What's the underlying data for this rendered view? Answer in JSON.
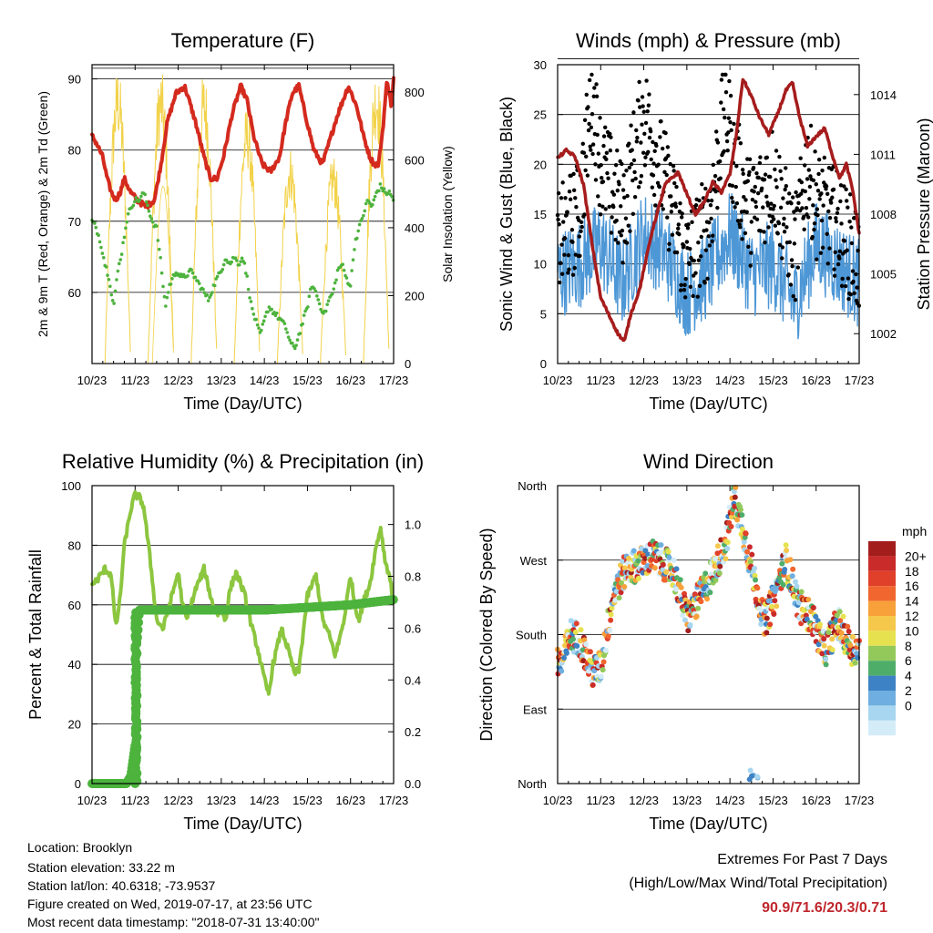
{
  "days": [
    "10/23",
    "11/23",
    "12/23",
    "13/23",
    "14/23",
    "15/23",
    "16/23",
    "17/23"
  ],
  "time_label": "Time (Day/UTC)",
  "chart_data": [
    {
      "type": "line",
      "title": "Temperature (F)",
      "ylabel": "2m & 9m T (Red, Orange) & 2m Td (Green)",
      "ylabel_right": "Solar Insolation (Yellow)",
      "xlabel": "Time (Day/UTC)",
      "xlim": [
        0,
        7
      ],
      "ylim": [
        50,
        92
      ],
      "ylim_right": [
        0,
        880
      ],
      "yticks": [
        60,
        70,
        80,
        90
      ],
      "yticks_right": [
        0,
        200,
        400,
        600,
        800
      ],
      "gridlines": [
        60,
        70,
        80,
        90
      ],
      "series": [
        {
          "color": "#d42a1e",
          "x": [
            0,
            0.1,
            0.25,
            0.35,
            0.45,
            0.55,
            0.65,
            0.75,
            0.9,
            1.05,
            1.25,
            1.45,
            1.6,
            1.75,
            1.95,
            2.15,
            2.4,
            2.6,
            2.75,
            2.9,
            3.05,
            3.25,
            3.45,
            3.6,
            3.75,
            3.95,
            4.15,
            4.35,
            4.5,
            4.65,
            4.8,
            4.95,
            5.15,
            5.35,
            5.5,
            5.7,
            5.95,
            6.15,
            6.3,
            6.45,
            6.55,
            6.65,
            6.75,
            6.85,
            6.95,
            7
          ],
          "values": [
            82,
            81,
            79,
            76,
            74,
            73,
            74,
            76,
            74,
            73,
            72,
            73,
            78,
            84,
            88,
            89,
            84,
            79,
            76,
            76,
            79,
            85,
            89,
            87,
            82,
            78,
            77,
            79,
            84,
            88,
            89,
            85,
            80,
            78,
            81,
            85,
            89,
            86,
            82,
            79,
            78,
            78,
            83,
            90,
            86,
            90
          ]
        },
        {
          "color": "#4db33d",
          "x": [
            0,
            0.1,
            0.2,
            0.3,
            0.4,
            0.5,
            0.6,
            0.7,
            0.8,
            0.9,
            1.0,
            1.1,
            1.2,
            1.3,
            1.4,
            1.5,
            1.6,
            1.7,
            1.8,
            1.95,
            2.1,
            2.3,
            2.5,
            2.7,
            2.9,
            3.0,
            3.1,
            3.2,
            3.3,
            3.4,
            3.5,
            3.6,
            3.7,
            3.8,
            3.9,
            4.0,
            4.1,
            4.25,
            4.4,
            4.5,
            4.6,
            4.7,
            4.8,
            4.9,
            5.0,
            5.1,
            5.2,
            5.3,
            5.4,
            5.5,
            5.6,
            5.7,
            5.8,
            5.9,
            6.0,
            6.1,
            6.2,
            6.3,
            6.4,
            6.5,
            6.6,
            6.7,
            6.8,
            6.9,
            7.0
          ],
          "values": [
            70,
            69,
            67,
            64,
            62,
            58,
            63,
            66,
            70,
            72,
            73,
            73,
            74,
            72,
            70,
            69,
            64,
            58,
            61,
            63,
            62,
            63,
            61,
            59,
            62,
            63,
            65,
            64,
            65,
            64,
            65,
            62,
            58,
            56,
            54,
            56,
            58,
            57,
            56,
            55,
            53,
            52,
            54,
            56,
            58,
            61,
            60,
            58,
            57,
            59,
            60,
            63,
            64,
            62,
            61,
            67,
            69,
            71,
            73,
            72,
            74,
            75,
            74,
            74,
            73
          ]
        },
        {
          "color": "#f2d24a",
          "x": [
            0.6,
            1.6,
            2.6,
            3.6,
            4.6,
            5.6,
            6.6
          ],
          "values": [
            875,
            870,
            860,
            760,
            640,
            620,
            880
          ],
          "note": "daily insolation peaks"
        }
      ]
    },
    {
      "type": "scatter",
      "title": "Winds (mph) & Pressure (mb)",
      "ylabel": "Sonic Wind & Gust (Blue, Black)",
      "ylabel_right": "Station Pressure (Maroon)",
      "xlabel": "Time (Day/UTC)",
      "xlim": [
        0,
        7
      ],
      "ylim": [
        0,
        30
      ],
      "ylim_right": [
        1000.5,
        1015.5
      ],
      "yticks": [
        0,
        5,
        10,
        15,
        20,
        25,
        30
      ],
      "yticks_right": [
        1002,
        1005,
        1008,
        1011,
        1014
      ],
      "gridlines": [
        5,
        10,
        15,
        20,
        25,
        30
      ],
      "series": [
        {
          "color": "#4d97d6",
          "x": [
            0,
            0.5,
            1.0,
            1.5,
            2.0,
            2.5,
            3.0,
            3.5,
            4.0,
            4.5,
            5.0,
            5.5,
            6.0,
            6.5,
            7.0
          ],
          "values": [
            9,
            10,
            12,
            8,
            13,
            11,
            7,
            9,
            13,
            9,
            10,
            6,
            12,
            10,
            8
          ]
        },
        {
          "color": "#000000",
          "x": [
            0,
            0.5,
            0.8,
            1.0,
            1.5,
            2.0,
            2.5,
            3.0,
            3.5,
            3.9,
            4.1,
            4.5,
            5.0,
            5.5,
            5.8,
            6.0,
            6.5,
            7.0
          ],
          "values": [
            12,
            15,
            27,
            20,
            15,
            25,
            18,
            10,
            14,
            26,
            20,
            15,
            19,
            11,
            20,
            16,
            14,
            10
          ]
        },
        {
          "color": "#a61c1c",
          "x": [
            0,
            0.2,
            0.4,
            0.6,
            0.8,
            1.0,
            1.2,
            1.4,
            1.55,
            1.7,
            1.9,
            2.2,
            2.5,
            2.8,
            3.0,
            3.2,
            3.4,
            3.6,
            3.8,
            4.0,
            4.15,
            4.3,
            4.5,
            4.7,
            4.9,
            5.1,
            5.3,
            5.45,
            5.6,
            5.8,
            6.0,
            6.2,
            6.4,
            6.55,
            6.7,
            6.85,
            7.0
          ],
          "values": [
            1010.8,
            1011.2,
            1010.9,
            1009.5,
            1006.5,
            1003.8,
            1002.9,
            1002.0,
            1001.6,
            1003.0,
            1004.2,
            1007.2,
            1009.5,
            1010.1,
            1009.0,
            1008.0,
            1008.6,
            1009.6,
            1009.1,
            1010.0,
            1012.0,
            1014.8,
            1013.9,
            1012.8,
            1012.0,
            1013.0,
            1014.2,
            1014.6,
            1013.0,
            1011.4,
            1011.9,
            1012.3,
            1010.8,
            1009.8,
            1010.5,
            1009.2,
            1007.0
          ]
        }
      ]
    },
    {
      "type": "line",
      "title": "Relative Humidity (%) & Precipitation (in)",
      "ylabel": "Percent & Total Rainfall",
      "xlabel": "Time (Day/UTC)",
      "xlim": [
        0,
        7
      ],
      "ylim": [
        0,
        100
      ],
      "ylim_right": [
        0,
        1.15
      ],
      "yticks": [
        0,
        20,
        40,
        60,
        80,
        100
      ],
      "yticks_right": [
        0.0,
        0.2,
        0.4,
        0.6,
        0.8,
        1.0
      ],
      "gridlines": [
        0,
        20,
        40,
        60,
        80,
        100
      ],
      "series": [
        {
          "color": "#8cc63f",
          "x": [
            0,
            0.1,
            0.2,
            0.3,
            0.45,
            0.55,
            0.65,
            0.75,
            0.9,
            1.0,
            1.1,
            1.2,
            1.35,
            1.5,
            1.65,
            1.8,
            2.0,
            2.1,
            2.2,
            2.4,
            2.6,
            2.8,
            2.9,
            3.0,
            3.1,
            3.2,
            3.35,
            3.55,
            3.7,
            3.85,
            4.0,
            4.1,
            4.2,
            4.4,
            4.55,
            4.7,
            4.8,
            5.0,
            5.2,
            5.35,
            5.5,
            5.65,
            5.85,
            6.0,
            6.1,
            6.2,
            6.3,
            6.45,
            6.6,
            6.7,
            6.8,
            6.9,
            7.0
          ],
          "values": [
            67,
            68,
            70,
            72,
            70,
            52,
            62,
            80,
            92,
            97,
            96,
            93,
            75,
            55,
            52,
            60,
            71,
            60,
            55,
            65,
            72,
            60,
            57,
            58,
            55,
            65,
            71,
            63,
            53,
            45,
            35,
            30,
            40,
            52,
            45,
            37,
            38,
            63,
            70,
            55,
            50,
            43,
            55,
            70,
            60,
            55,
            61,
            67,
            80,
            86,
            75,
            70,
            61
          ]
        },
        {
          "color": "#4db33d",
          "x": [
            0,
            0.8,
            0.9,
            1.0,
            1.05,
            1.1,
            2.0,
            3.0,
            4.0,
            5.0,
            6.0,
            6.5,
            7.0
          ],
          "values": [
            0.0,
            0.0,
            0.03,
            0.15,
            0.55,
            0.67,
            0.67,
            0.67,
            0.67,
            0.68,
            0.69,
            0.7,
            0.71
          ]
        }
      ]
    },
    {
      "type": "scatter",
      "title": "Wind Direction",
      "ylabel": "Direction (Colored By Speed)",
      "xlabel": "Time (Day/UTC)",
      "xlim": [
        0,
        7
      ],
      "ylim": [
        0,
        360
      ],
      "yticks": [
        "North",
        "East",
        "South",
        "West",
        "North"
      ],
      "gridlines": [
        90,
        180,
        270,
        360
      ],
      "colorbar_title": "mph",
      "colorbar_labels": [
        "20+",
        "18",
        "16",
        "14",
        "12",
        "10",
        "8",
        "6",
        "4",
        "2",
        "0"
      ],
      "colorbar_colors": [
        "#a31d1d",
        "#c92a2a",
        "#e0402a",
        "#f0662e",
        "#f8a13a",
        "#f5c84c",
        "#e6e24f",
        "#93c95a",
        "#4fad6a",
        "#3d82c4",
        "#6faee0",
        "#a8d6f0",
        "#d4ecf8"
      ],
      "x": [
        0.1,
        0.3,
        0.5,
        0.8,
        1.0,
        1.3,
        1.6,
        1.9,
        2.2,
        2.5,
        2.7,
        3.0,
        3.3,
        3.6,
        3.9,
        4.1,
        4.3,
        4.5,
        4.8,
        5.0,
        5.3,
        5.6,
        5.9,
        6.2,
        6.5,
        6.8,
        7.0
      ],
      "values": [
        145,
        180,
        175,
        135,
        140,
        230,
        260,
        265,
        275,
        265,
        255,
        200,
        225,
        255,
        290,
        345,
        310,
        260,
        195,
        220,
        270,
        215,
        200,
        160,
        195,
        165,
        160
      ]
    }
  ],
  "info": {
    "location": "Location: Brooklyn",
    "elevation": "Station elevation: 33.22 m",
    "latlon": "Station lat/lon: 40.6318; -73.9537",
    "created": "Figure created on Wed, 2019-07-17, at 23:56 UTC",
    "recent": "Most recent data timestamp: \"2018-07-31 13:40:00\""
  },
  "extremes": {
    "title": "Extremes For Past 7 Days",
    "subtitle": "(High/Low/Max Wind/Total Precipitation)",
    "values": "90.9/71.6/20.3/0.71",
    "color": "#c0272d"
  }
}
